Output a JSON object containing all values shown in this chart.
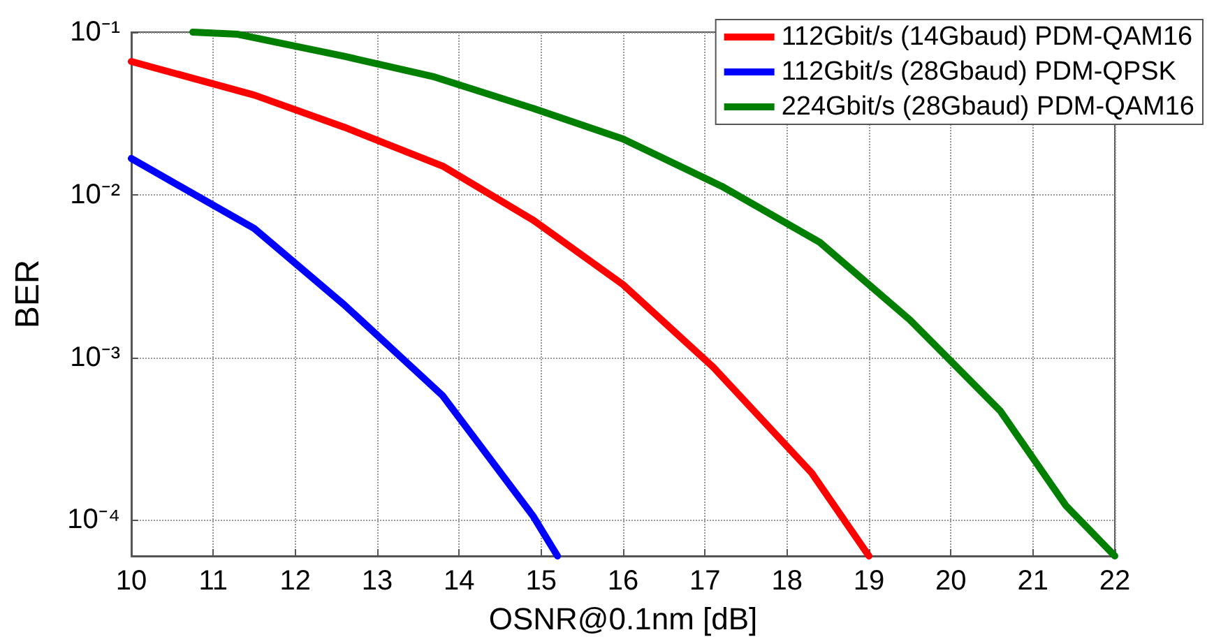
{
  "chart_data": {
    "type": "line",
    "xlabel": "OSNR@0.1nm [dB]",
    "ylabel": "BER",
    "series": [
      {
        "name": "112Gbit/s (14Gbaud) PDM-QAM16",
        "color": "#ff0000",
        "x": [
          10,
          11.5,
          12.6,
          13.8,
          14.9,
          16,
          17.1,
          18.3,
          19
        ],
        "values": [
          0.066,
          0.041,
          0.026,
          0.015,
          0.007,
          0.0028,
          0.00087,
          0.000195,
          6e-05
        ]
      },
      {
        "name": "112Gbit/s (28Gbaud) PDM-QPSK",
        "color": "#0000ff",
        "x": [
          10,
          11.5,
          12.6,
          13.8,
          14.9,
          15.2
        ],
        "values": [
          0.0167,
          0.0062,
          0.0021,
          0.00058,
          0.000106,
          6e-05
        ]
      },
      {
        "name": "224Gbit/s (28Gbaud) PDM-QAM16",
        "color": "#007f00",
        "x": [
          10.75,
          11.3,
          12.6,
          13.7,
          14.9,
          16,
          17.2,
          18.4,
          19.5,
          20.6,
          21.4,
          22
        ],
        "values": [
          0.1,
          0.097,
          0.071,
          0.053,
          0.034,
          0.022,
          0.0113,
          0.0051,
          0.0017,
          0.00047,
          0.000123,
          6e-05
        ]
      }
    ],
    "xlim": [
      10,
      22
    ],
    "xticks": [
      10,
      11,
      12,
      13,
      14,
      15,
      16,
      17,
      18,
      19,
      20,
      21,
      22
    ],
    "ylim": [
      6e-05,
      0.1
    ],
    "log": true,
    "yticks": [
      {
        "value": 0.0001,
        "label": "10⁻⁴"
      },
      {
        "value": 0.001,
        "label": "10⁻³"
      },
      {
        "value": 0.01,
        "label": "10⁻²"
      },
      {
        "value": 0.1,
        "label": "10⁻¹"
      }
    ],
    "grid": true,
    "legend": "top right",
    "marker": "none",
    "line_style": "solid"
  }
}
